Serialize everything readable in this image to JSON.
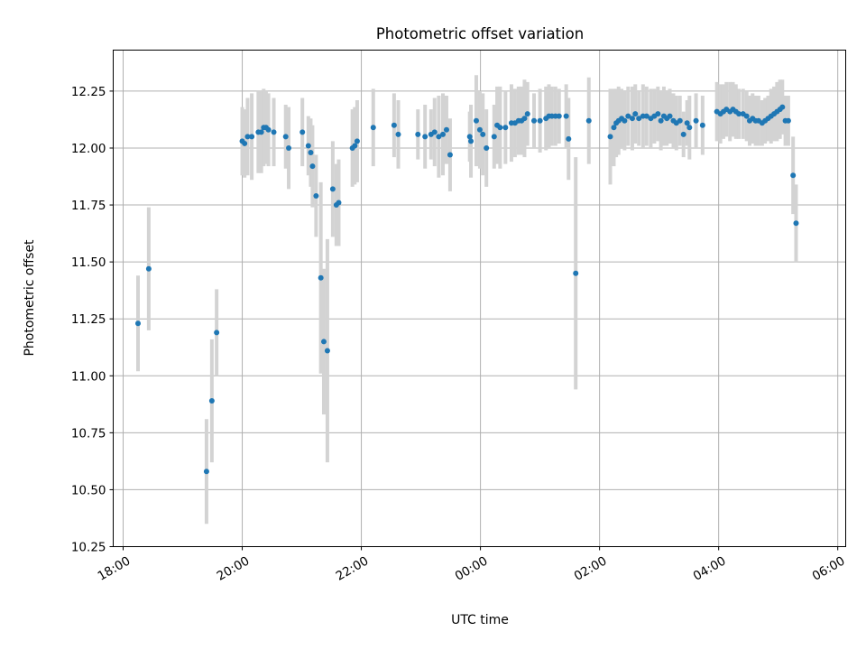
{
  "chart_data": {
    "type": "scatter",
    "title": "Photometric offset variation",
    "xlabel": "UTC time",
    "ylabel": "Photometric offset",
    "xlim": [
      "17:50",
      "30:08"
    ],
    "ylim": [
      10.25,
      12.43
    ],
    "grid": true,
    "x_ticks": [
      "18:00",
      "20:00",
      "22:00",
      "00:00",
      "02:00",
      "04:00",
      "06:00"
    ],
    "y_ticks": [
      "10.25",
      "10.50",
      "10.75",
      "11.00",
      "11.25",
      "11.50",
      "11.75",
      "12.00",
      "12.25"
    ],
    "colors": {
      "point": "#1f77b4",
      "errorbar": "#d3d3d3",
      "grid": "#b0b0b0"
    },
    "series": [
      {
        "x_unit": "UTC time (hours after 00:00 of first night; values > 24 are next day)",
        "points": [
          [
            18.25,
            11.23,
            0.21
          ],
          [
            18.43,
            11.47,
            0.27
          ],
          [
            19.4,
            10.58,
            0.23
          ],
          [
            19.49,
            10.89,
            0.27
          ],
          [
            19.57,
            11.19,
            0.19
          ],
          [
            20.0,
            12.03,
            0.15
          ],
          [
            20.04,
            12.02,
            0.15
          ],
          [
            20.09,
            12.05,
            0.17
          ],
          [
            20.16,
            12.05,
            0.19
          ],
          [
            20.27,
            12.07,
            0.18
          ],
          [
            20.32,
            12.07,
            0.18
          ],
          [
            20.36,
            12.09,
            0.17
          ],
          [
            20.4,
            12.09,
            0.16
          ],
          [
            20.44,
            12.08,
            0.16
          ],
          [
            20.53,
            12.07,
            0.15
          ],
          [
            20.73,
            12.05,
            0.14
          ],
          [
            20.78,
            12.0,
            0.18
          ],
          [
            21.01,
            12.07,
            0.15
          ],
          [
            21.11,
            12.01,
            0.13
          ],
          [
            21.15,
            11.98,
            0.15
          ],
          [
            21.18,
            11.92,
            0.18
          ],
          [
            21.24,
            11.79,
            0.18
          ],
          [
            21.32,
            11.43,
            0.42
          ],
          [
            21.37,
            11.15,
            0.32
          ],
          [
            21.43,
            11.11,
            0.49
          ],
          [
            21.52,
            11.82,
            0.21
          ],
          [
            21.58,
            11.75,
            0.18
          ],
          [
            21.62,
            11.76,
            0.19
          ],
          [
            21.85,
            12.0,
            0.17
          ],
          [
            21.89,
            12.01,
            0.17
          ],
          [
            21.93,
            12.03,
            0.18
          ],
          [
            22.2,
            12.09,
            0.17
          ],
          [
            22.55,
            12.1,
            0.14
          ],
          [
            22.62,
            12.06,
            0.15
          ],
          [
            22.95,
            12.06,
            0.11
          ],
          [
            23.07,
            12.05,
            0.14
          ],
          [
            23.17,
            12.06,
            0.11
          ],
          [
            23.23,
            12.07,
            0.15
          ],
          [
            23.3,
            12.05,
            0.18
          ],
          [
            23.37,
            12.06,
            0.18
          ],
          [
            23.43,
            12.08,
            0.15
          ],
          [
            23.49,
            11.97,
            0.16
          ],
          [
            23.82,
            12.05,
            0.11
          ],
          [
            23.84,
            12.03,
            0.16
          ],
          [
            23.93,
            12.12,
            0.2
          ],
          [
            23.99,
            12.08,
            0.17
          ],
          [
            24.04,
            12.06,
            0.18
          ],
          [
            24.1,
            12.0,
            0.17
          ],
          [
            24.23,
            12.05,
            0.14
          ],
          [
            24.28,
            12.1,
            0.17
          ],
          [
            24.33,
            12.09,
            0.18
          ],
          [
            24.42,
            12.09,
            0.16
          ],
          [
            24.52,
            12.11,
            0.17
          ],
          [
            24.58,
            12.11,
            0.15
          ],
          [
            24.64,
            12.12,
            0.15
          ],
          [
            24.69,
            12.12,
            0.15
          ],
          [
            24.74,
            12.13,
            0.17
          ],
          [
            24.79,
            12.15,
            0.14
          ],
          [
            24.9,
            12.12,
            0.12
          ],
          [
            25.0,
            12.12,
            0.14
          ],
          [
            25.1,
            12.13,
            0.14
          ],
          [
            25.15,
            12.14,
            0.14
          ],
          [
            25.2,
            12.14,
            0.13
          ],
          [
            25.26,
            12.14,
            0.13
          ],
          [
            25.32,
            12.14,
            0.12
          ],
          [
            25.44,
            12.14,
            0.14
          ],
          [
            25.48,
            12.04,
            0.18
          ],
          [
            25.6,
            11.45,
            0.51
          ],
          [
            25.82,
            12.12,
            0.19
          ],
          [
            26.18,
            12.05,
            0.21
          ],
          [
            26.24,
            12.09,
            0.17
          ],
          [
            26.28,
            12.11,
            0.15
          ],
          [
            26.32,
            12.12,
            0.15
          ],
          [
            26.37,
            12.13,
            0.13
          ],
          [
            26.42,
            12.12,
            0.13
          ],
          [
            26.48,
            12.14,
            0.13
          ],
          [
            26.55,
            12.13,
            0.14
          ],
          [
            26.6,
            12.15,
            0.13
          ],
          [
            26.66,
            12.13,
            0.12
          ],
          [
            26.73,
            12.14,
            0.14
          ],
          [
            26.79,
            12.14,
            0.13
          ],
          [
            26.86,
            12.13,
            0.13
          ],
          [
            26.92,
            12.14,
            0.12
          ],
          [
            26.98,
            12.15,
            0.12
          ],
          [
            27.03,
            12.12,
            0.13
          ],
          [
            27.08,
            12.14,
            0.13
          ],
          [
            27.13,
            12.13,
            0.12
          ],
          [
            27.18,
            12.14,
            0.12
          ],
          [
            27.24,
            12.12,
            0.12
          ],
          [
            27.29,
            12.11,
            0.12
          ],
          [
            27.35,
            12.12,
            0.11
          ],
          [
            27.41,
            12.06,
            0.1
          ],
          [
            27.47,
            12.11,
            0.1
          ],
          [
            27.51,
            12.09,
            0.14
          ],
          [
            27.62,
            12.12,
            0.12
          ],
          [
            27.73,
            12.1,
            0.13
          ],
          [
            27.97,
            12.16,
            0.13
          ],
          [
            28.03,
            12.15,
            0.13
          ],
          [
            28.08,
            12.16,
            0.12
          ],
          [
            28.13,
            12.17,
            0.12
          ],
          [
            28.19,
            12.16,
            0.13
          ],
          [
            28.24,
            12.17,
            0.12
          ],
          [
            28.29,
            12.16,
            0.12
          ],
          [
            28.34,
            12.15,
            0.11
          ],
          [
            28.41,
            12.15,
            0.11
          ],
          [
            28.47,
            12.14,
            0.11
          ],
          [
            28.52,
            12.12,
            0.11
          ],
          [
            28.57,
            12.13,
            0.11
          ],
          [
            28.62,
            12.12,
            0.11
          ],
          [
            28.67,
            12.12,
            0.11
          ],
          [
            28.73,
            12.11,
            0.1
          ],
          [
            28.78,
            12.12,
            0.1
          ],
          [
            28.83,
            12.13,
            0.1
          ],
          [
            28.88,
            12.14,
            0.12
          ],
          [
            28.93,
            12.15,
            0.12
          ],
          [
            28.98,
            12.16,
            0.13
          ],
          [
            29.03,
            12.17,
            0.13
          ],
          [
            29.07,
            12.18,
            0.12
          ],
          [
            29.12,
            12.12,
            0.11
          ],
          [
            29.17,
            12.12,
            0.11
          ],
          [
            29.25,
            11.88,
            0.17
          ],
          [
            29.3,
            11.67,
            0.17
          ]
        ]
      }
    ]
  }
}
